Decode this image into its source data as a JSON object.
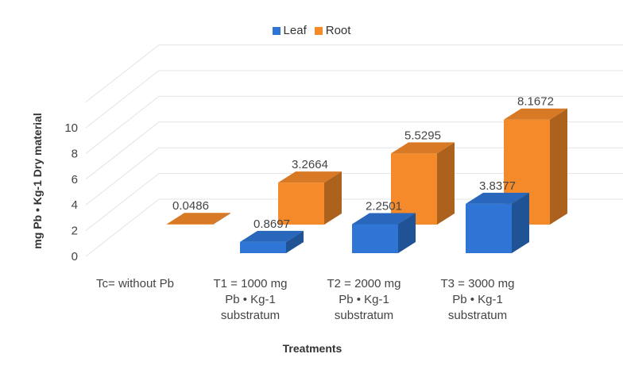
{
  "chart_data": {
    "type": "bar",
    "style": "3d-clustered-column",
    "title": "",
    "xlabel": "Treatments",
    "ylabel": "mg Pb • Kg-1 Dry material",
    "ylim": [
      0,
      10
    ],
    "yticks": [
      "0",
      "2",
      "4",
      "6",
      "8",
      "10"
    ],
    "categories": [
      [
        "Tc= without Pb"
      ],
      [
        "T1 = 1000 mg",
        "Pb • Kg-1",
        "substratum"
      ],
      [
        "T2 = 2000 mg",
        "Pb • Kg-1",
        "substratum"
      ],
      [
        "T3 = 3000 mg",
        "Pb • Kg-1",
        "substratum"
      ]
    ],
    "series": [
      {
        "name": "Leaf",
        "values": [
          0,
          0.8697,
          2.2501,
          3.8377
        ],
        "labels": [
          "",
          "0.8697",
          "2.2501",
          "3.8377"
        ],
        "color": "#2e75d6"
      },
      {
        "name": "Root",
        "values": [
          0.0486,
          3.2664,
          5.5295,
          8.1672
        ],
        "labels": [
          "0.0486",
          "3.2664",
          "5.5295",
          "8.1672"
        ],
        "color": "#f58a2a"
      }
    ],
    "legend": "top-center",
    "grid": true
  }
}
